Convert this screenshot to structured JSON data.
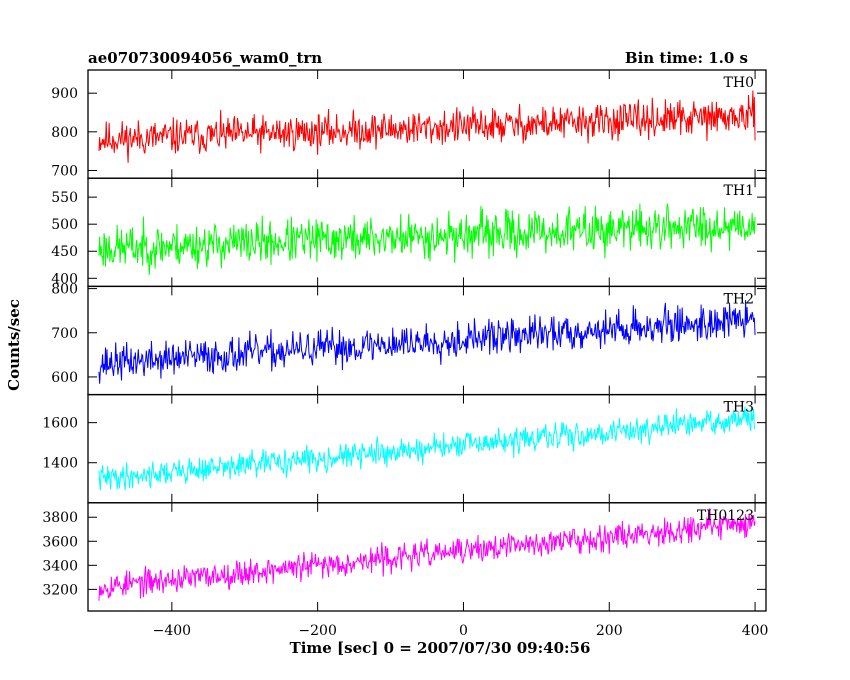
{
  "chart_data": {
    "type": "line",
    "title": "ae070730094056_wam0_trn",
    "subtitle": "Bin time: 1.0 s",
    "xlabel": "Time [sec] 0 = 2007/07/30 09:40:56",
    "ylabel": "Counts/sec",
    "xlim": [
      -515,
      415
    ],
    "x_ticks": [
      -400,
      -200,
      0,
      200,
      400
    ],
    "x_tick_labels": [
      "−400",
      "−200",
      "0",
      "200",
      "400"
    ],
    "x_start": -500,
    "x_end": 400,
    "x_step": 1,
    "panels": [
      {
        "name": "TH0",
        "color": "#ff0000",
        "ylim": [
          680,
          960
        ],
        "y_ticks": [
          700,
          800,
          900
        ],
        "y_tick_labels": [
          "700",
          "800",
          "900"
        ],
        "trend_start": 780,
        "trend_end": 840,
        "noise_amplitude": 40,
        "seed": 11
      },
      {
        "name": "TH1",
        "color": "#00ff00",
        "ylim": [
          385,
          585
        ],
        "y_ticks": [
          400,
          450,
          500,
          550
        ],
        "y_tick_labels": [
          "400",
          "450",
          "500",
          "550"
        ],
        "trend_start": 455,
        "trend_end": 500,
        "noise_amplitude": 35,
        "seed": 23
      },
      {
        "name": "TH2",
        "color": "#0000ff",
        "ylim": [
          560,
          805
        ],
        "y_ticks": [
          600,
          700,
          800
        ],
        "y_tick_labels": [
          "600",
          "700",
          "800"
        ],
        "trend_start": 630,
        "trend_end": 730,
        "noise_amplitude": 35,
        "seed": 37
      },
      {
        "name": "TH3",
        "color": "#00ffff",
        "ylim": [
          1200,
          1740
        ],
        "y_ticks": [
          1400,
          1600
        ],
        "y_tick_labels": [
          "1400",
          "1600"
        ],
        "trend_start": 1320,
        "trend_end": 1620,
        "noise_amplitude": 55,
        "seed": 41
      },
      {
        "name": "TH0123",
        "color": "#ff00ff",
        "ylim": [
          3020,
          3920
        ],
        "y_ticks": [
          3200,
          3400,
          3600,
          3800
        ],
        "y_tick_labels": [
          "3200",
          "3400",
          "3600",
          "3800"
        ],
        "trend_start": 3220,
        "trend_end": 3760,
        "noise_amplitude": 95,
        "seed": 53
      }
    ]
  }
}
